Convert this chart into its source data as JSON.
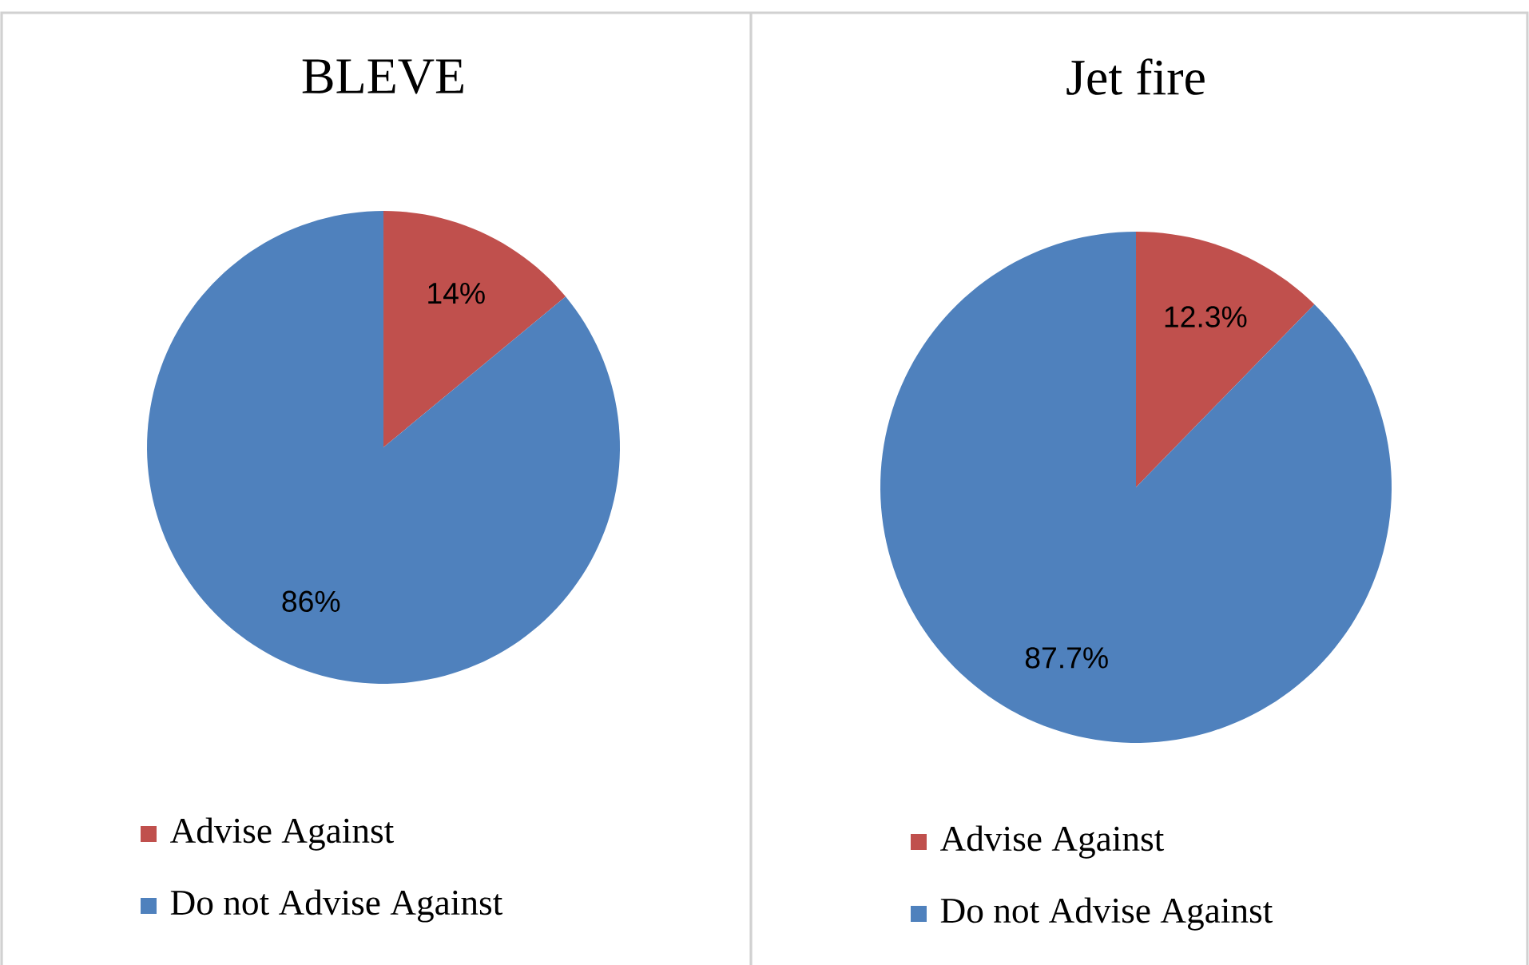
{
  "chart_data": [
    {
      "type": "pie",
      "title": "BLEVE",
      "categories": [
        "Advise Against",
        "Do not Advise Against"
      ],
      "values": [
        14,
        86
      ],
      "colors": [
        "#c0504d",
        "#4f81bd"
      ],
      "value_labels": [
        "14%",
        "86%"
      ],
      "legend": "bottom"
    },
    {
      "type": "pie",
      "title": "Jet fire",
      "categories": [
        "Advise Against",
        "Do not Advise Against"
      ],
      "values": [
        12.3,
        87.7
      ],
      "colors": [
        "#c0504d",
        "#4f81bd"
      ],
      "value_labels": [
        "12.3%",
        "87.7%"
      ],
      "legend": "bottom"
    }
  ]
}
